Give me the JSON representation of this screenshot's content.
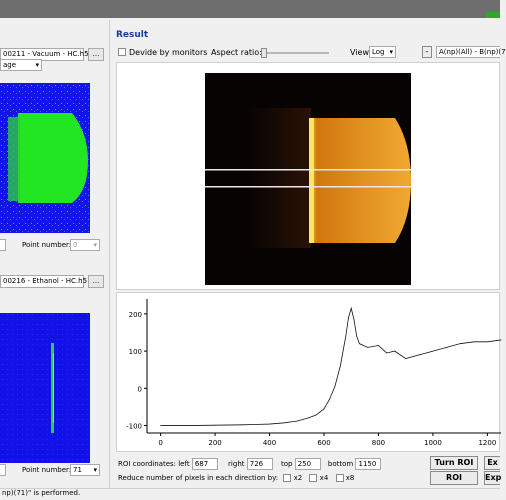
{
  "frame1": {
    "path": "00211 - Vacuum - HC.h5",
    "dots": "...",
    "mode": "age",
    "point_number_label": "Point number:",
    "point_number": "0"
  },
  "frame2": {
    "path": "00216 - Ethanol - HC.h5",
    "dots": "...",
    "point_number_label": "Point number:",
    "point_number": "71"
  },
  "result": {
    "title": "Result",
    "devide_label": "Devide by monitors",
    "aspect_label": "Aspect ratio:",
    "view_label": "View",
    "view_value": "Log",
    "minus_btn": "-",
    "formula": "A(np)(All) - B(np)(7"
  },
  "roi": {
    "coords_label": "ROI coordinates: left",
    "left": "687",
    "right_label": "right",
    "right": "726",
    "top_label": "top",
    "top": "250",
    "bottom_label": "bottom",
    "bottom": "1150",
    "reduce_label": "Reduce number of pixels in each direction by:",
    "x2": "x2",
    "x4": "x4",
    "x8": "x8"
  },
  "buttons": {
    "turn_roi": "Turn ROI",
    "roi": "ROI",
    "ex1": "Ex",
    "ex2": "Exp"
  },
  "status": "np)(71)\" is performed.",
  "chart_data": {
    "type": "line",
    "x": [
      0,
      100,
      200,
      300,
      400,
      450,
      500,
      540,
      570,
      600,
      620,
      640,
      660,
      680,
      690,
      700,
      710,
      720,
      730,
      760,
      800,
      830,
      860,
      900,
      950,
      1000,
      1050,
      1100,
      1150,
      1200,
      1250
    ],
    "y": [
      -100,
      -100,
      -99,
      -98,
      -96,
      -93,
      -88,
      -80,
      -72,
      -55,
      -30,
      5,
      60,
      140,
      190,
      215,
      185,
      140,
      120,
      110,
      115,
      95,
      100,
      80,
      90,
      100,
      110,
      120,
      125,
      125,
      130
    ],
    "xticks": [
      0,
      200,
      400,
      600,
      800,
      1000,
      1200
    ],
    "yticks": [
      -100,
      0,
      100,
      200
    ],
    "xlim": [
      -50,
      1250
    ],
    "ylim": [
      -120,
      240
    ],
    "grid": false,
    "title": "",
    "xlabel": "",
    "ylabel": ""
  }
}
